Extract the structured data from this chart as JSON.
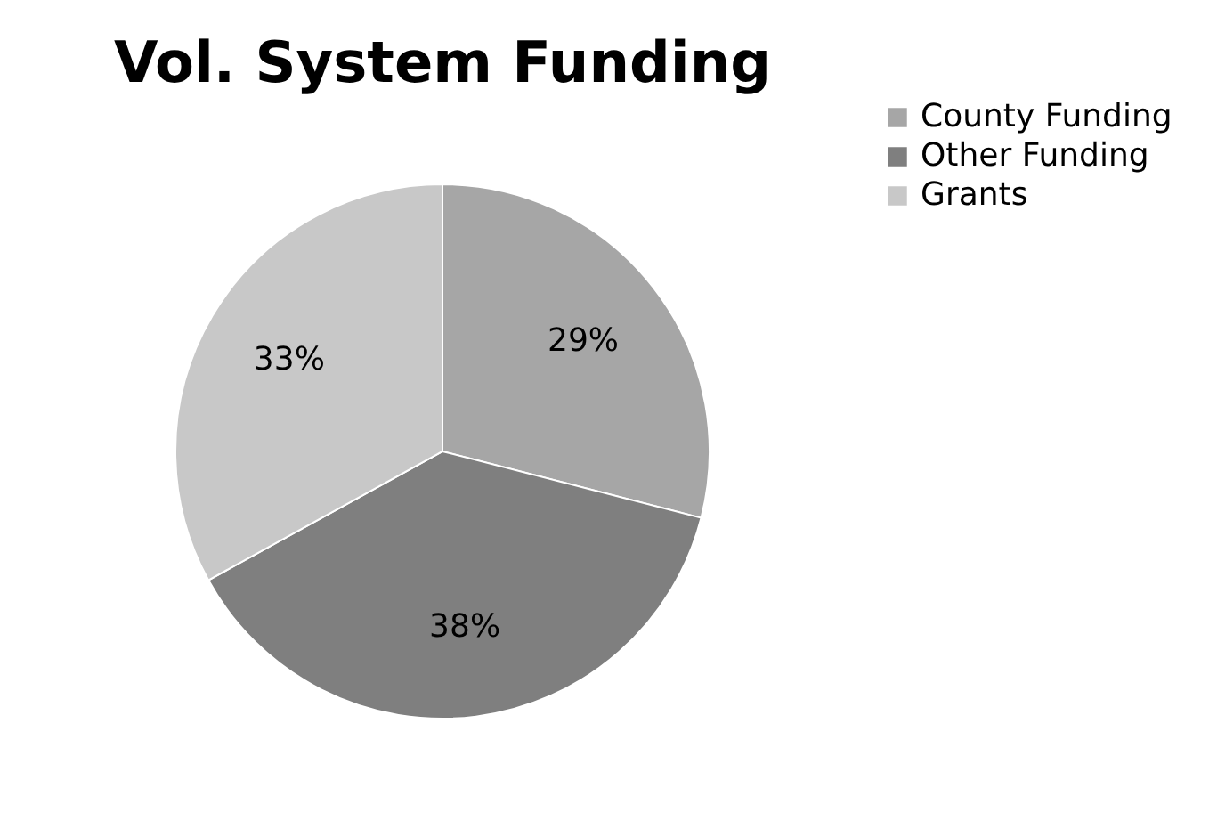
{
  "chart_data": {
    "type": "pie",
    "title": "Vol. System Funding",
    "categories": [
      "County Funding",
      "Other Funding",
      "Grants"
    ],
    "values": [
      29,
      38,
      33
    ],
    "value_labels": [
      "29%",
      "38%",
      "33%"
    ],
    "colors": [
      "#a6a6a6",
      "#7f7f7f",
      "#c8c8c8"
    ],
    "legend": "right"
  }
}
